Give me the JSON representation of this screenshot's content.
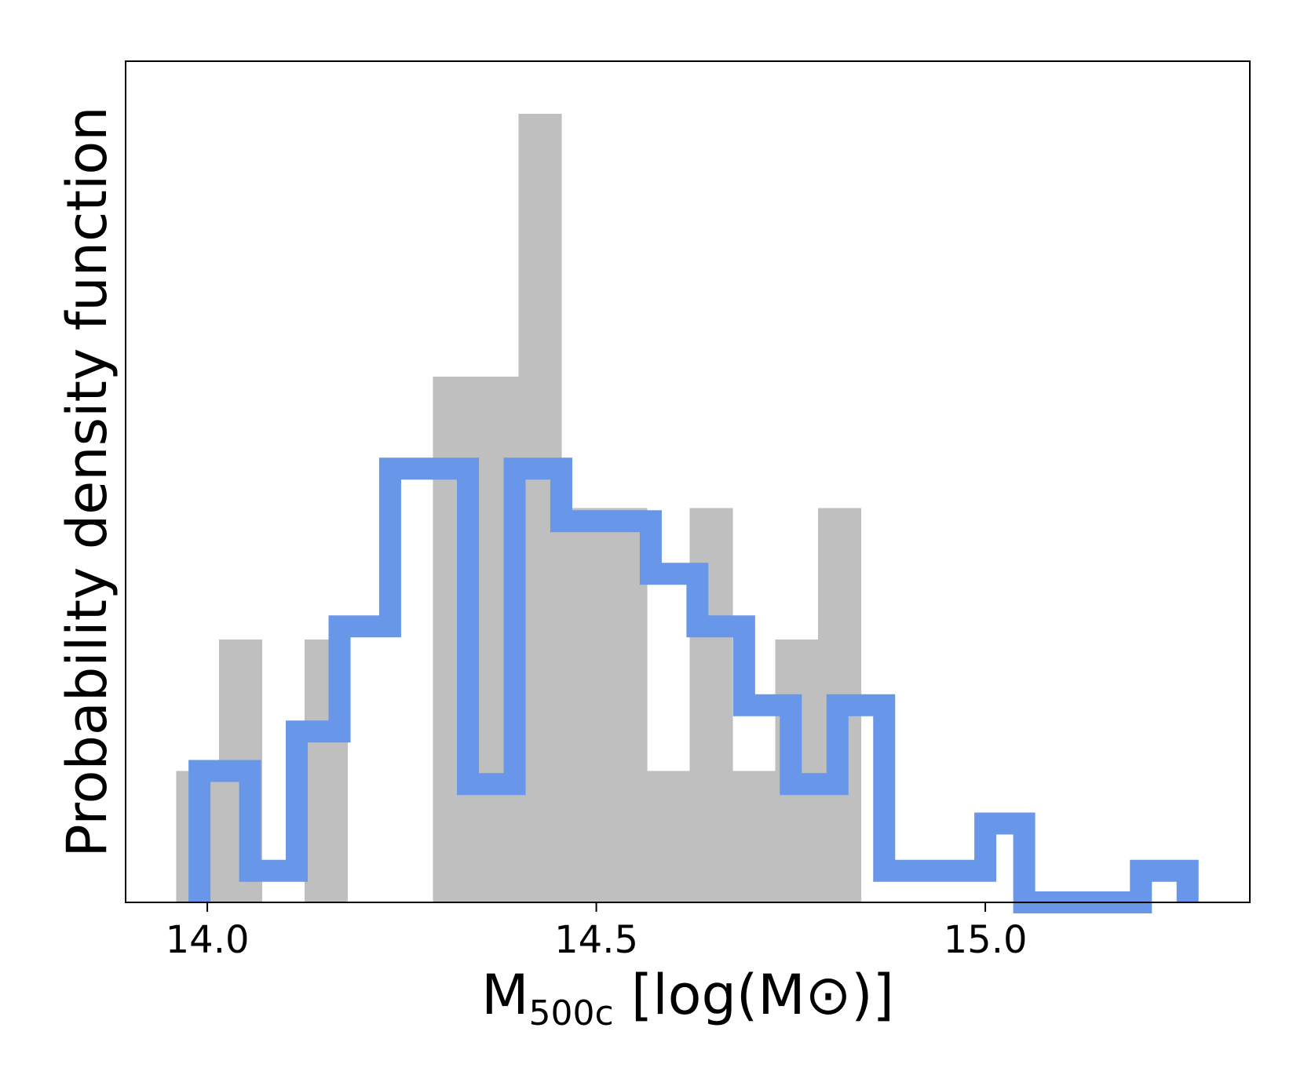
{
  "chart_data": {
    "type": "bar",
    "xlabel": {
      "main": "M",
      "sub": "500c",
      "rest": " [log(M",
      "sun": "⊙",
      "close": ")]"
    },
    "ylabel": "Probability density function",
    "xlim": [
      13.895,
      15.34
    ],
    "ylim": [
      0,
      3.2
    ],
    "xticks": [
      {
        "value": 14.0,
        "label": "14.0"
      },
      {
        "value": 14.5,
        "label": "14.5"
      },
      {
        "value": 15.0,
        "label": "15.0"
      }
    ],
    "yticks": [],
    "grid": false,
    "series": [
      {
        "kind": "filled-histogram",
        "color": "#bfbfbf",
        "edges": [
          13.96,
          13.99,
          14.015,
          14.07,
          14.125,
          14.18,
          14.235,
          14.29,
          14.345,
          14.4,
          14.455,
          14.51,
          14.565,
          14.62,
          14.675,
          14.73,
          14.785,
          14.84
        ],
        "values": [
          0.5,
          0.5,
          1.0,
          0,
          1.0,
          0,
          0,
          2.0,
          2.0,
          3.0,
          1.5,
          1.5,
          0.5,
          1.5,
          0.5,
          1.0,
          1.5
        ]
      },
      {
        "kind": "step-histogram",
        "color": "#6897e9",
        "edges": [
          13.99,
          14.055,
          14.115,
          14.17,
          14.235,
          14.335,
          14.395,
          14.455,
          14.57,
          14.63,
          14.69,
          14.75,
          14.81,
          14.87,
          15.0,
          15.05,
          15.2,
          15.26
        ],
        "values": [
          0.5,
          0.12,
          0.65,
          1.05,
          1.65,
          0.45,
          1.65,
          1.45,
          1.25,
          1.05,
          0.75,
          0.45,
          0.75,
          0.12,
          0.3,
          0,
          0.12
        ]
      }
    ]
  }
}
